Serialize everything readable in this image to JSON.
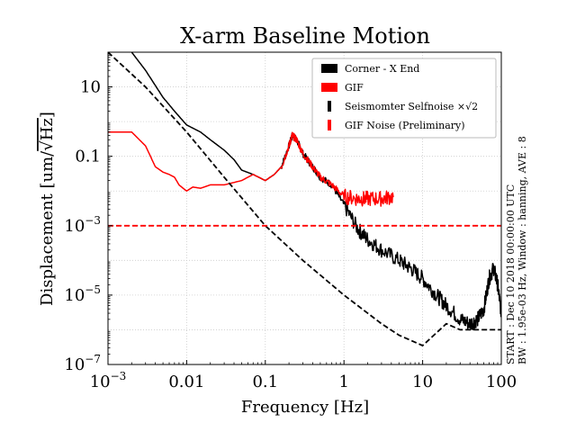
{
  "chart_data": {
    "type": "line",
    "title": "X-arm Baseline Motion",
    "xlabel": "Frequency [Hz]",
    "ylabel_prefix": "Displacement [um/",
    "ylabel_radical": "Hz",
    "ylabel_suffix": "]",
    "x_scale": "log",
    "y_scale": "log",
    "xlim": [
      0.001,
      100
    ],
    "ylim": [
      1e-07,
      100
    ],
    "x_ticks": [
      {
        "value": 0.001,
        "base": "10",
        "exp": "−3"
      },
      {
        "value": 0.01,
        "label": "0.01"
      },
      {
        "value": 0.1,
        "label": "0.1"
      },
      {
        "value": 1,
        "label": "1"
      },
      {
        "value": 10,
        "label": "10"
      },
      {
        "value": 100,
        "label": "100"
      }
    ],
    "y_ticks": [
      {
        "value": 1e-07,
        "base": "10",
        "exp": "−7"
      },
      {
        "value": 1e-05,
        "base": "10",
        "exp": "−5"
      },
      {
        "value": 0.001,
        "base": "10",
        "exp": "−3"
      },
      {
        "value": 0.1,
        "label": "0.1"
      },
      {
        "value": 10,
        "label": "10"
      }
    ],
    "grid": true,
    "legend_position": "top-right",
    "series": [
      {
        "name": "Corner - X End",
        "color": "#000000",
        "style": "solid",
        "noisy": true,
        "x": [
          0.0015,
          0.002,
          0.003,
          0.005,
          0.007,
          0.01,
          0.015,
          0.02,
          0.03,
          0.04,
          0.05,
          0.07,
          0.1,
          0.13,
          0.16,
          0.2,
          0.22,
          0.25,
          0.3,
          0.4,
          0.5,
          0.7,
          1.0,
          1.5,
          2,
          3,
          5,
          7,
          10,
          15,
          20,
          30,
          40,
          50,
          60,
          70,
          80,
          90,
          100
        ],
        "y": [
          300,
          100,
          30,
          5,
          2,
          0.8,
          0.5,
          0.3,
          0.15,
          0.08,
          0.04,
          0.03,
          0.02,
          0.03,
          0.05,
          0.2,
          0.4,
          0.3,
          0.12,
          0.05,
          0.025,
          0.015,
          0.004,
          0.0008,
          0.0004,
          0.0002,
          0.0001,
          6e-05,
          3e-05,
          1e-05,
          5e-06,
          2e-06,
          1.5e-06,
          2e-06,
          4e-06,
          3e-05,
          6e-05,
          2e-05,
          3e-06
        ]
      },
      {
        "name": "GIF",
        "color": "#ff0000",
        "style": "solid",
        "noisy": true,
        "x": [
          0.001,
          0.002,
          0.003,
          0.004,
          0.005,
          0.006,
          0.007,
          0.008,
          0.009,
          0.01,
          0.012,
          0.015,
          0.02,
          0.03,
          0.05,
          0.07,
          0.1,
          0.13,
          0.16,
          0.2,
          0.22,
          0.25,
          0.3,
          0.4,
          0.5,
          0.7,
          1.0,
          1.5,
          2,
          3,
          4.3
        ],
        "y": [
          0.5,
          0.5,
          0.2,
          0.05,
          0.035,
          0.03,
          0.025,
          0.015,
          0.012,
          0.01,
          0.013,
          0.012,
          0.015,
          0.015,
          0.02,
          0.03,
          0.02,
          0.03,
          0.05,
          0.2,
          0.4,
          0.3,
          0.12,
          0.05,
          0.025,
          0.015,
          0.007,
          0.006,
          0.006,
          0.006,
          0.007
        ]
      },
      {
        "name": "Seismomter Selfnoise ×√2",
        "color": "#000000",
        "style": "dashed",
        "noisy": false,
        "x": [
          0.001,
          0.003,
          0.01,
          0.03,
          0.1,
          0.3,
          1,
          3,
          5,
          10,
          20,
          30,
          50,
          100
        ],
        "y": [
          100,
          10,
          0.5,
          0.025,
          0.001,
          0.0001,
          1e-05,
          1.5e-06,
          7e-07,
          3.5e-07,
          1.5e-06,
          1e-06,
          1e-06,
          1e-06
        ]
      },
      {
        "name": "GIF Noise (Preliminary)",
        "color": "#ff0000",
        "style": "dashed",
        "noisy": false,
        "x": [
          0.001,
          100
        ],
        "y": [
          0.001,
          0.001
        ]
      }
    ],
    "annotation_lines": [
      "START : Dec 10 2018 00:00:00 UTC",
      "BW : 1.95e-03 Hz, Window : hanning, AVE : 8"
    ]
  }
}
